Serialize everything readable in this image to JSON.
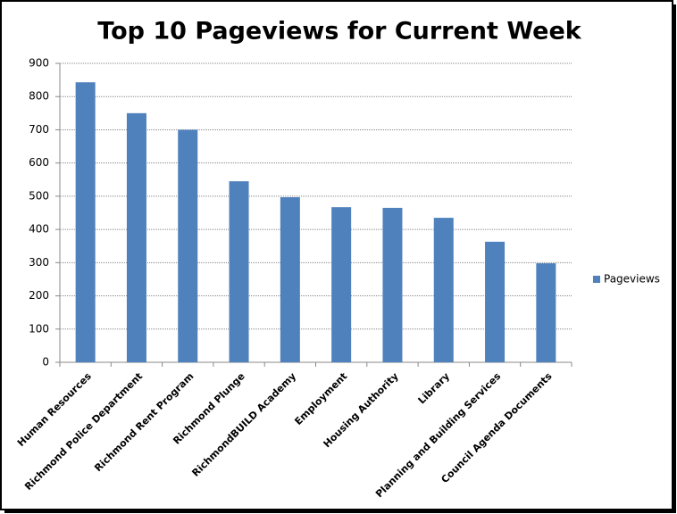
{
  "chart_data": {
    "type": "bar",
    "title": "Top 10 Pageviews for Current Week",
    "categories": [
      "Human Resources",
      "Richmond Police Department",
      "Richmond Rent Program",
      "Richmond Plunge",
      "RichmondBUILD Academy",
      "Employment",
      "Housing Authority",
      "Library",
      "Planning and Building Services",
      "Council Agenda Documents"
    ],
    "series": [
      {
        "name": "Pageviews",
        "color": "#4f81bd",
        "values": [
          843,
          750,
          700,
          545,
          497,
          467,
          465,
          435,
          363,
          298
        ]
      }
    ],
    "ylim": [
      0,
      900
    ],
    "yticks": [
      0,
      100,
      200,
      300,
      400,
      500,
      600,
      700,
      800,
      900
    ],
    "grid": true,
    "legend": "right"
  }
}
